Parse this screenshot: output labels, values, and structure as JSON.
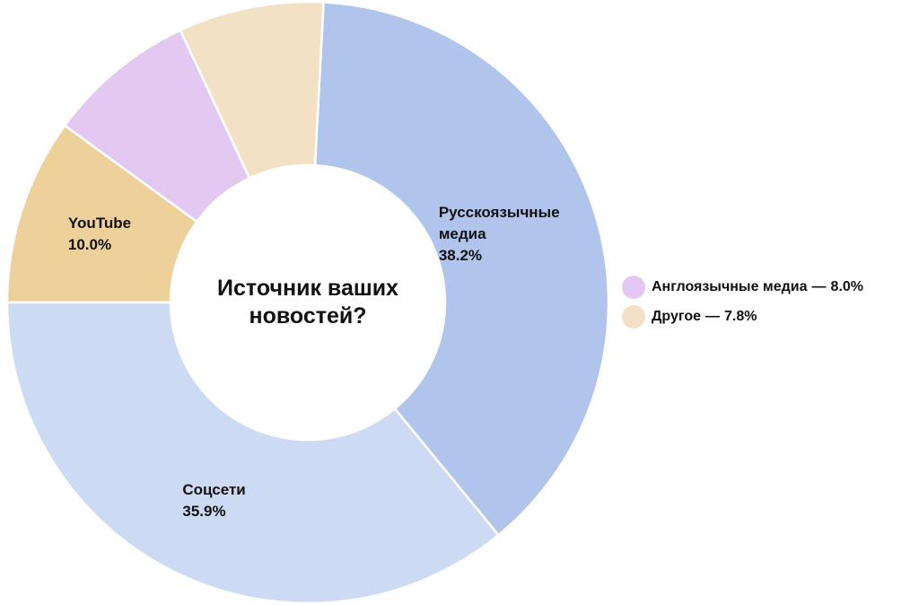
{
  "chart_data": {
    "type": "donut",
    "title": "Источник ваших новостей?",
    "categories": [
      "Русскоязычные медиа",
      "Соцсети",
      "YouTube",
      "Англоязычные медиа",
      "Другое"
    ],
    "values": [
      38.2,
      35.9,
      10.0,
      8.0,
      7.8
    ],
    "value_labels": [
      "38.2%",
      "35.9%",
      "10.0%",
      "8.0%",
      "7.8%"
    ],
    "colors": [
      "#b0c4ec",
      "#ccdaf3",
      "#edd09a",
      "#e3c9f1",
      "#f3e1c5"
    ],
    "label_separator": "—",
    "legend": "right"
  }
}
